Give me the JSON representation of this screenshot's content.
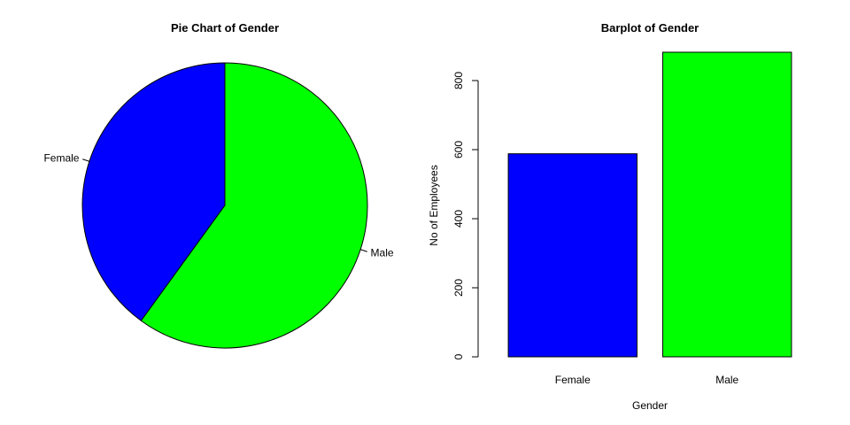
{
  "chart_data": [
    {
      "type": "pie",
      "title": "Pie Chart of Gender",
      "categories": [
        "Female",
        "Male"
      ],
      "values": [
        588,
        882
      ],
      "colors": [
        "#0000ff",
        "#00ff00"
      ],
      "start_angle_deg": 90,
      "direction": "counterclockwise"
    },
    {
      "type": "bar",
      "title": "Barplot of Gender",
      "categories": [
        "Female",
        "Male"
      ],
      "values": [
        588,
        882
      ],
      "colors": [
        "#0000ff",
        "#00ff00"
      ],
      "xlabel": "Gender",
      "ylabel": "No of Employees",
      "yticks": [
        0,
        200,
        400,
        600,
        800
      ],
      "ylim": [
        0,
        882
      ],
      "grid": false
    }
  ]
}
